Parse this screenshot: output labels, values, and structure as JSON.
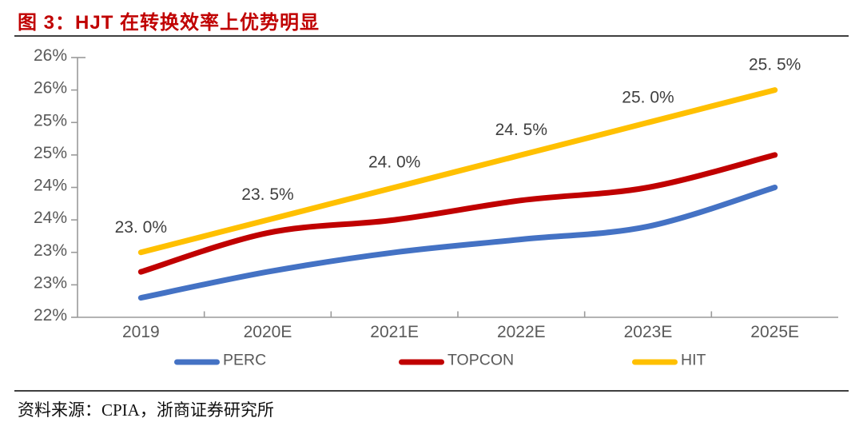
{
  "header": {
    "title": "图 3：HJT 在转换效率上优势明显"
  },
  "footer": {
    "source": "资料来源：CPIA，浙商证券研究所"
  },
  "colors": {
    "title_red": "#c00000",
    "separator": "#3f3f3f",
    "axis_line": "#9a9a9a",
    "axis_text": "#595959",
    "data_label_text": "#3f3f3f",
    "perc_blue": "#4472c4",
    "topcon_red": "#c00000",
    "hit_yellow": "#ffc000"
  },
  "chart_data": {
    "type": "line",
    "title": "图 3：HJT 在转换效率上优势明显",
    "xlabel": "",
    "ylabel": "",
    "categories": [
      "2019",
      "2020E",
      "2021E",
      "2022E",
      "2023E",
      "2025E"
    ],
    "series": [
      {
        "name": "PERC",
        "color": "#4472c4",
        "values": [
          22.3,
          22.7,
          23.0,
          23.2,
          23.4,
          24.0
        ]
      },
      {
        "name": "TOPCON",
        "color": "#c00000",
        "values": [
          22.7,
          23.3,
          23.5,
          23.8,
          24.0,
          24.5
        ]
      },
      {
        "name": "HIT",
        "color": "#ffc000",
        "values": [
          23.0,
          23.5,
          24.0,
          24.5,
          25.0,
          25.5
        ],
        "point_labels": [
          "23. 0%",
          "23. 5%",
          "24. 0%",
          "24. 5%",
          "25. 0%",
          "25. 5%"
        ]
      }
    ],
    "ylim": [
      22,
      26
    ],
    "ytick_step": 0.5,
    "ytick_labels_bottom_to_top": [
      "22%",
      "23%",
      "23%",
      "24%",
      "24%",
      "25%",
      "25%",
      "26%",
      "26%"
    ],
    "grid": false,
    "smooth": true,
    "legend_position": "bottom"
  }
}
